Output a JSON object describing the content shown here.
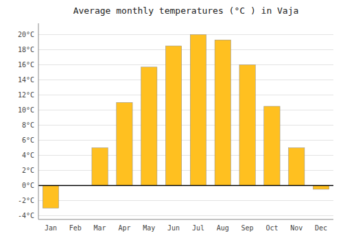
{
  "chart_data": {
    "type": "bar",
    "title": "Average monthly temperatures (°C ) in Vaja",
    "categories": [
      "Jan",
      "Feb",
      "Mar",
      "Apr",
      "May",
      "Jun",
      "Jul",
      "Aug",
      "Sep",
      "Oct",
      "Nov",
      "Dec"
    ],
    "values": [
      -3.0,
      0.0,
      5.0,
      11.0,
      15.7,
      18.5,
      20.0,
      19.3,
      16.0,
      10.5,
      5.0,
      -0.5
    ],
    "color": "#FFC020",
    "ylim": [
      -4.5,
      21.5
    ],
    "yticks": [
      {
        "value": -4,
        "label": "-4°C"
      },
      {
        "value": -2,
        "label": "-2°C"
      },
      {
        "value": 0,
        "label": "0°C"
      },
      {
        "value": 2,
        "label": "2°C"
      },
      {
        "value": 4,
        "label": "4°C"
      },
      {
        "value": 6,
        "label": "6°C"
      },
      {
        "value": 8,
        "label": "8°C"
      },
      {
        "value": 10,
        "label": "10°C"
      },
      {
        "value": 12,
        "label": "12°C"
      },
      {
        "value": 14,
        "label": "14°C"
      },
      {
        "value": 16,
        "label": "16°C"
      },
      {
        "value": 18,
        "label": "18°C"
      },
      {
        "value": 20,
        "label": "20°C"
      }
    ],
    "grid": true
  }
}
